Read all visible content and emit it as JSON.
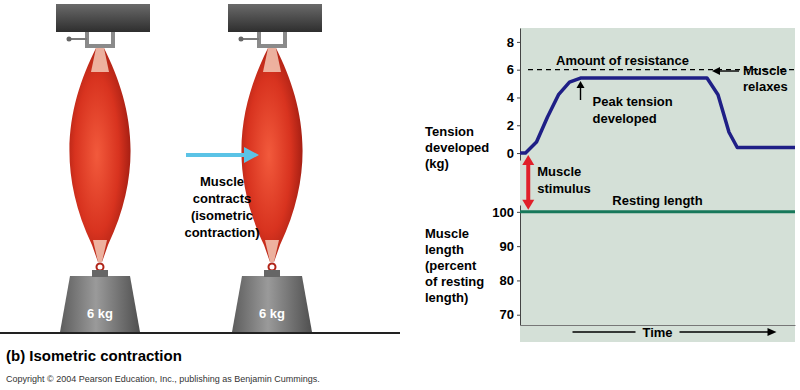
{
  "chart_data": [
    {
      "type": "line",
      "ylabel": "Tension\ndeveloped\n(kg)",
      "x": [
        0,
        2,
        6,
        10,
        14,
        18,
        22,
        68,
        72,
        76,
        79,
        100
      ],
      "values": [
        0,
        0,
        0.8,
        2.6,
        4.2,
        5.1,
        5.4,
        5.4,
        4.2,
        1.5,
        0.4,
        0.4
      ],
      "color": "#1f1f86",
      "xlim": [
        0,
        100
      ],
      "xticks": [],
      "ylim": [
        -0.5,
        9
      ],
      "yticks": [
        0,
        2,
        4,
        6,
        8
      ],
      "tick_labels": "y",
      "annotations": [
        {
          "text": "Amount of resistance",
          "y": 6,
          "line_style": "dashed"
        },
        {
          "text": "Peak tension\ndeveloped",
          "x": 22,
          "y": 5.4
        },
        {
          "text": "Muscle\nrelaxes",
          "x": 68,
          "y": 5.4
        },
        {
          "text": "Muscle\nstimulus",
          "x": 3
        }
      ]
    },
    {
      "type": "line",
      "xlabel": "Time",
      "ylabel": "Muscle\nlength\n(percent\nof resting\nlength)",
      "x": [
        0,
        100
      ],
      "series": [
        {
          "name": "Resting length",
          "color": "#17785a",
          "values": [
            100,
            100
          ]
        }
      ],
      "xlim": [
        0,
        100
      ],
      "xticks": [],
      "ylim": [
        67,
        102
      ],
      "yticks": [
        70,
        80,
        90,
        100
      ],
      "tick_labels": "y"
    }
  ],
  "diagram": {
    "weights": [
      "6 kg",
      "6 kg"
    ],
    "arrow_label": "Muscle\ncontracts\n(isometric\ncontraction)"
  },
  "caption": "(b) Isometric contraction",
  "copyright": "Copyright © 2004 Pearson Education, Inc., publishing as Benjamin Cummings."
}
